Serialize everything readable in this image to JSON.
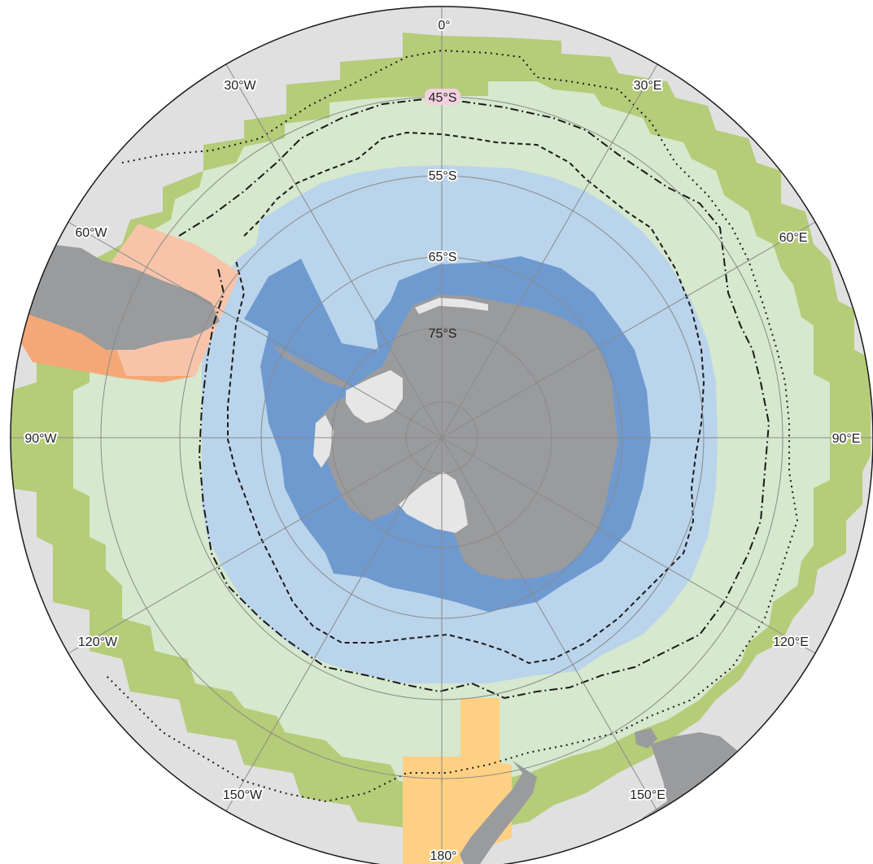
{
  "map": {
    "projection": "south polar stereographic",
    "longitude_labels": {
      "lon_0": "0°",
      "lon_30e": "30°E",
      "lon_60e": "60°E",
      "lon_90e": "90°E",
      "lon_120e": "120°E",
      "lon_150e": "150°E",
      "lon_180": "180°",
      "lon_150w": "150°W",
      "lon_120w": "120°W",
      "lon_90w": "90°W",
      "lon_60w": "60°W",
      "lon_30w": "30°W"
    },
    "latitude_labels": {
      "lat_45s": "45°S",
      "lat_55s": "55°S",
      "lat_65s": "65°S",
      "lat_75s": "75°S"
    },
    "colors": {
      "outer_gray": "#e0e0e1",
      "ring_green": "#b5cc79",
      "light_green": "#d6e8cd",
      "light_blue": "#bad4ec",
      "mid_blue": "#6f9ad0",
      "land": "#9a9b9d",
      "ice_shelf": "#e6e6e7",
      "south_america_zone": "#f8c4a9",
      "south_america_zone_dark": "#f5a877",
      "new_zealand_zone": "#fed084",
      "grid": "#8a8a8a",
      "highlight_45s": "#f2d1df"
    }
  }
}
